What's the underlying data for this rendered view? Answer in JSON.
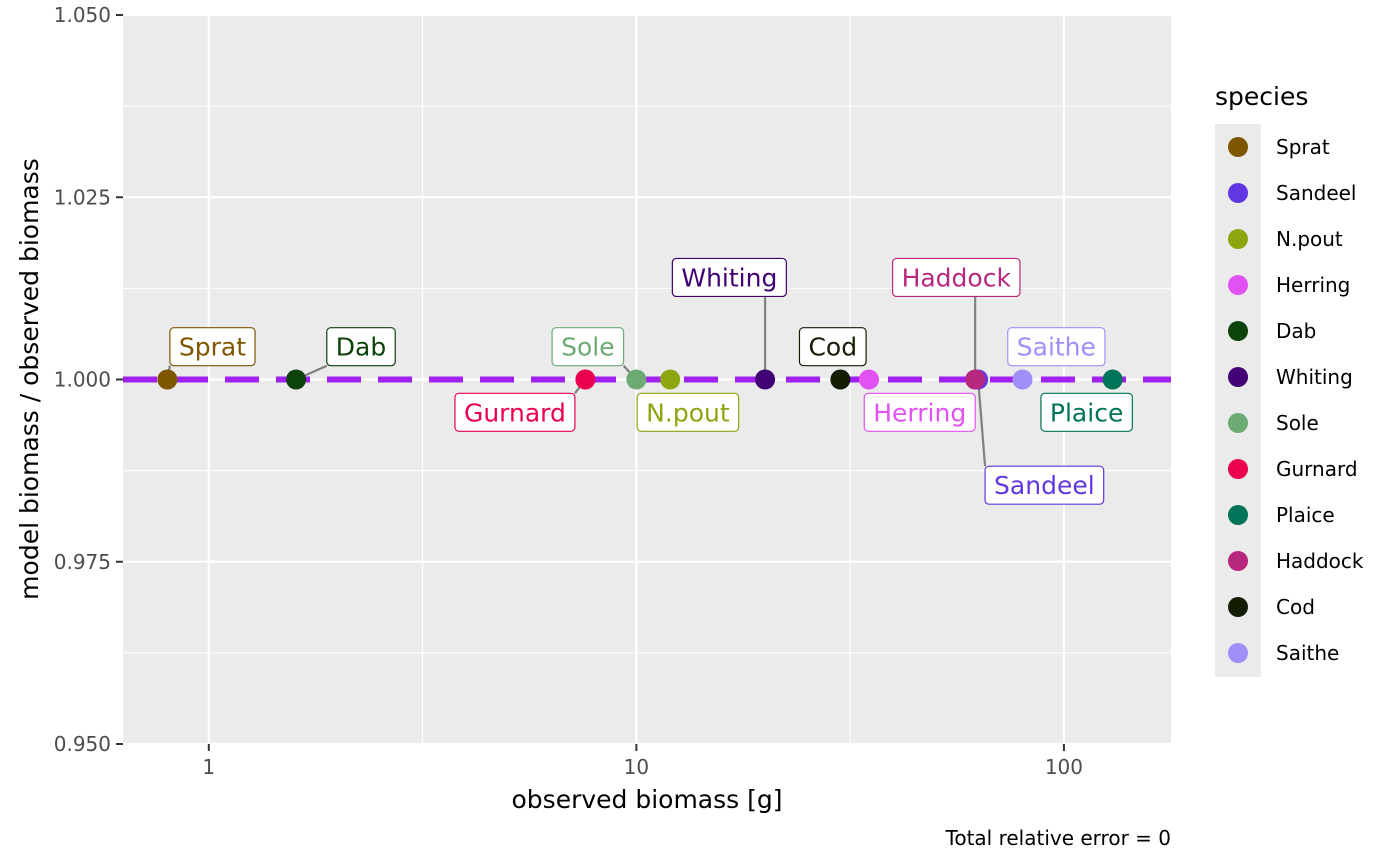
{
  "chart_data": {
    "type": "scatter",
    "xlabel": "observed biomass [g]",
    "ylabel": "model biomass / observed biomass",
    "caption": "Total relative error = 0",
    "x_scale": "log10",
    "xlim": [
      0.63,
      178
    ],
    "ylim": [
      0.95,
      1.05
    ],
    "x_ticks": [
      {
        "value": 1,
        "label": "1"
      },
      {
        "value": 10,
        "label": "10"
      },
      {
        "value": 100,
        "label": "100"
      }
    ],
    "y_ticks": [
      {
        "value": 0.95,
        "label": "0.950"
      },
      {
        "value": 0.975,
        "label": "0.975"
      },
      {
        "value": 1.0,
        "label": "1.000"
      },
      {
        "value": 1.025,
        "label": "1.025"
      },
      {
        "value": 1.05,
        "label": "1.050"
      }
    ],
    "reference_line": {
      "y": 1.0,
      "style": "dashed",
      "color": "#a020f0"
    },
    "grid": true,
    "legend": {
      "title": "species",
      "position": "right"
    },
    "points": [
      {
        "species": "Sprat",
        "x": 0.8,
        "y": 1.0,
        "color": "#7f5600",
        "label": "Sprat",
        "label_x": 1.02,
        "label_y": 1.0045
      },
      {
        "species": "Sandeel",
        "x": 63,
        "y": 1.0,
        "color": "#6236e0",
        "label": "Sandeel",
        "label_x": 90,
        "label_y": 0.9855
      },
      {
        "species": "N.pout",
        "x": 12,
        "y": 1.0,
        "color": "#8ca60f",
        "label": "N.pout",
        "label_x": 13.2,
        "label_y": 0.9955
      },
      {
        "species": "Herring",
        "x": 35,
        "y": 1.0,
        "color": "#e252f3",
        "label": "Herring",
        "label_x": 46,
        "label_y": 0.9955
      },
      {
        "species": "Dab",
        "x": 1.6,
        "y": 1.0,
        "color": "#0c430a",
        "label": "Dab",
        "label_x": 2.27,
        "label_y": 1.0045
      },
      {
        "species": "Whiting",
        "x": 20,
        "y": 1.0,
        "color": "#410073",
        "label": "Whiting",
        "label_x": 16.5,
        "label_y": 1.014
      },
      {
        "species": "Sole",
        "x": 10,
        "y": 1.0,
        "color": "#6bab73",
        "label": "Sole",
        "label_x": 7.7,
        "label_y": 1.0045
      },
      {
        "species": "Gurnard",
        "x": 7.6,
        "y": 1.0,
        "color": "#eb0051",
        "label": "Gurnard",
        "label_x": 5.2,
        "label_y": 0.9955
      },
      {
        "species": "Plaice",
        "x": 130,
        "y": 1.0,
        "color": "#007458",
        "label": "Plaice",
        "label_x": 113,
        "label_y": 0.9955
      },
      {
        "species": "Haddock",
        "x": 62,
        "y": 1.0,
        "color": "#b8277e",
        "label": "Haddock",
        "label_x": 56,
        "label_y": 1.014
      },
      {
        "species": "Cod",
        "x": 30,
        "y": 1.0,
        "color": "#121d04",
        "label": "Cod",
        "label_x": 28.8,
        "label_y": 1.0045
      },
      {
        "species": "Saithe",
        "x": 80,
        "y": 1.0,
        "color": "#a18ef8",
        "label": "Saithe",
        "label_x": 96,
        "label_y": 1.0045
      }
    ]
  }
}
